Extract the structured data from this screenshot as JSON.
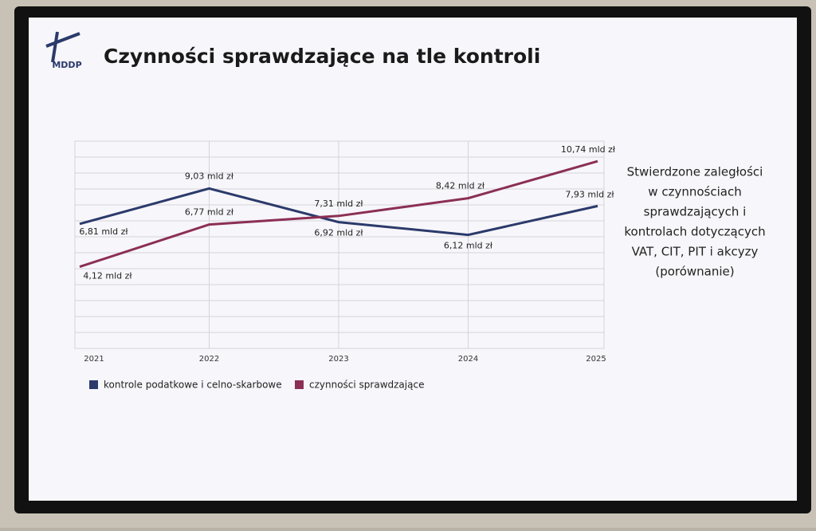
{
  "chart_data": {
    "type": "line",
    "logo": "MDDP",
    "title": "Czynności sprawdzające na tle kontroli",
    "categories": [
      "2021",
      "2022",
      "2023",
      "2024",
      "2025"
    ],
    "series": [
      {
        "name": "kontrole podatkowe i celno-skarbowe",
        "color": "#2b3a6b",
        "values": [
          6.81,
          9.03,
          6.92,
          6.12,
          7.93
        ],
        "value_labels": [
          "6,81 mld zł",
          "9,03 mld zł",
          "6,92 mld zł",
          "6,12 mld zł",
          "7,93 mld zł"
        ]
      },
      {
        "name": "czynności sprawdzające",
        "color": "#8b2f55",
        "values": [
          4.12,
          6.77,
          7.31,
          8.42,
          10.74
        ],
        "value_labels": [
          "4,12 mld zł",
          "6,77 mld zł",
          "7,31 mld zł",
          "8,42 mld zł",
          "10,74 mld zł"
        ]
      }
    ],
    "ylim": [
      -1,
      12
    ],
    "yticks": [
      -1,
      0,
      1,
      2,
      3,
      4,
      5,
      6,
      7,
      8,
      9,
      10,
      11,
      12
    ],
    "grid": true,
    "annotation": [
      "Stwierdzone zaległości",
      "w czynnościach",
      "sprawdzających i",
      "kontrolach dotyczących",
      "VAT, CIT, PIT i akcyzy",
      "(porównanie)"
    ]
  }
}
